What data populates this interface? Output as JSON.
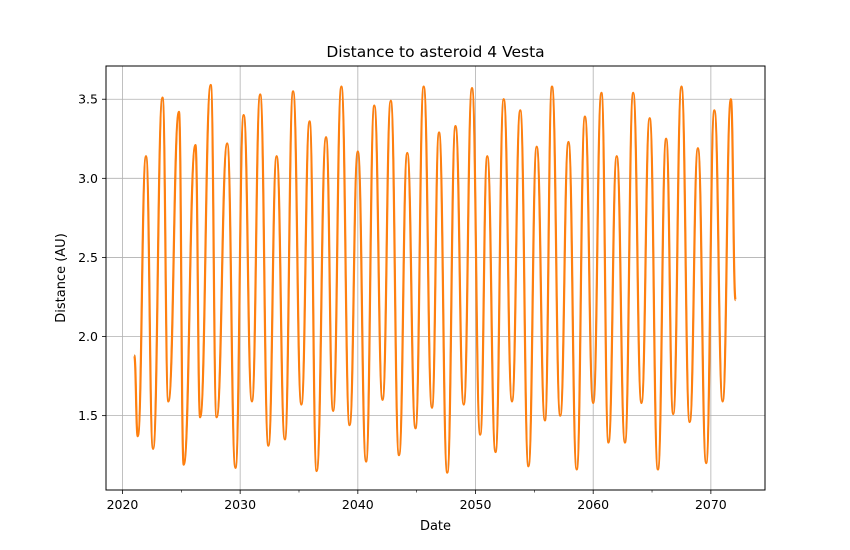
{
  "chart_data": {
    "type": "line",
    "title": "Distance to asteroid 4 Vesta",
    "xlabel": "Date",
    "ylabel": "Distance (AU)",
    "xlim": [
      2018.6,
      2074.6
    ],
    "ylim": [
      1.03,
      3.71
    ],
    "x_ticks": [
      2020,
      2030,
      2040,
      2050,
      2060,
      2070
    ],
    "x_minor_ticks": [
      2025,
      2035,
      2045,
      2055,
      2065
    ],
    "y_ticks": [
      1.5,
      2.0,
      2.5,
      3.0,
      3.5
    ],
    "y_tick_labels": [
      "1.5",
      "2.0",
      "2.5",
      "3.0",
      "3.5"
    ],
    "grid": true,
    "line_colors": [
      "#1f77b4",
      "#ff7f0e"
    ],
    "series": [
      {
        "x": [
          2021.0,
          2021.3,
          2022.0,
          2022.6,
          2023.4,
          2023.9,
          2024.8,
          2025.2,
          2026.2,
          2026.6,
          2027.5,
          2028.0,
          2028.9,
          2029.6,
          2030.3,
          2031.0,
          2031.7,
          2032.4,
          2033.1,
          2033.8,
          2034.5,
          2035.2,
          2035.9,
          2036.5,
          2037.3,
          2037.9,
          2038.6,
          2039.3,
          2040.0,
          2040.7,
          2041.4,
          2042.1,
          2042.8,
          2043.5,
          2044.2,
          2044.9,
          2045.6,
          2046.3,
          2046.9,
          2047.6,
          2048.3,
          2049.0,
          2049.7,
          2050.4,
          2051.0,
          2051.7,
          2052.4,
          2053.1,
          2053.8,
          2054.5,
          2055.2,
          2055.9,
          2056.5,
          2057.2,
          2057.9,
          2058.6,
          2059.3,
          2060.0,
          2060.7,
          2061.3,
          2062.0,
          2062.7,
          2063.4,
          2064.1,
          2064.8,
          2065.5,
          2066.2,
          2066.8,
          2067.5,
          2068.2,
          2068.9,
          2069.6,
          2070.3,
          2071.0,
          2071.7,
          2072.1
        ],
        "y": [
          1.88,
          1.37,
          3.14,
          1.29,
          3.51,
          1.59,
          3.42,
          1.19,
          3.21,
          1.49,
          3.59,
          1.49,
          3.22,
          1.17,
          3.4,
          1.59,
          3.53,
          1.31,
          3.14,
          1.35,
          3.55,
          1.57,
          3.36,
          1.15,
          3.26,
          1.53,
          3.58,
          1.44,
          3.17,
          1.21,
          3.46,
          1.6,
          3.49,
          1.25,
          3.16,
          1.42,
          3.58,
          1.55,
          3.29,
          1.14,
          3.33,
          1.57,
          3.57,
          1.38,
          3.14,
          1.27,
          3.5,
          1.59,
          3.43,
          1.18,
          3.2,
          1.47,
          3.58,
          1.5,
          3.23,
          1.16,
          3.39,
          1.58,
          3.54,
          1.33,
          3.14,
          1.33,
          3.54,
          1.58,
          3.38,
          1.16,
          3.25,
          1.51,
          3.58,
          1.46,
          3.19,
          1.2,
          3.43,
          1.59,
          3.5,
          2.23
        ]
      }
    ]
  }
}
